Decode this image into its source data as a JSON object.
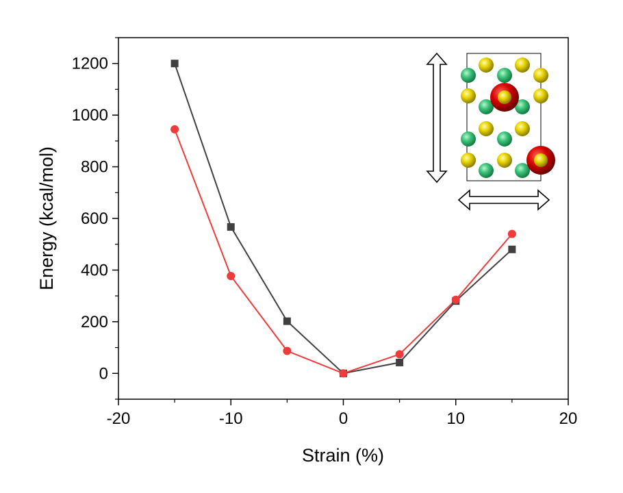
{
  "chart_data": {
    "type": "line",
    "title": "",
    "xlabel": "Strain (%)",
    "ylabel": "Energy (kcal/mol)",
    "xlim": [
      -20,
      20
    ],
    "ylim": [
      -100,
      1300
    ],
    "xticks": [
      -20,
      -10,
      0,
      10,
      20
    ],
    "xminor": [
      -15,
      -5,
      5,
      15
    ],
    "yticks": [
      0,
      200,
      400,
      600,
      800,
      1000,
      1200
    ],
    "yminor": [
      -100,
      100,
      300,
      500,
      700,
      900,
      1100,
      1300
    ],
    "grid": false,
    "legend": "none",
    "series": [
      {
        "name": "series-black",
        "color": "#404040",
        "marker": "square",
        "x": [
          -15,
          -10,
          -5,
          0,
          5,
          10,
          15
        ],
        "y": [
          1200,
          567,
          202,
          0,
          42,
          280,
          480
        ]
      },
      {
        "name": "series-red",
        "color": "#ee3b3b",
        "marker": "circle",
        "x": [
          -15,
          -10,
          -5,
          0,
          5,
          10,
          15
        ],
        "y": [
          945,
          377,
          87,
          0,
          74,
          285,
          540
        ]
      }
    ],
    "inset": {
      "description_colors": {
        "green": "#3cc47a",
        "yellow": "#e8d400",
        "red": "#d40000"
      }
    }
  }
}
